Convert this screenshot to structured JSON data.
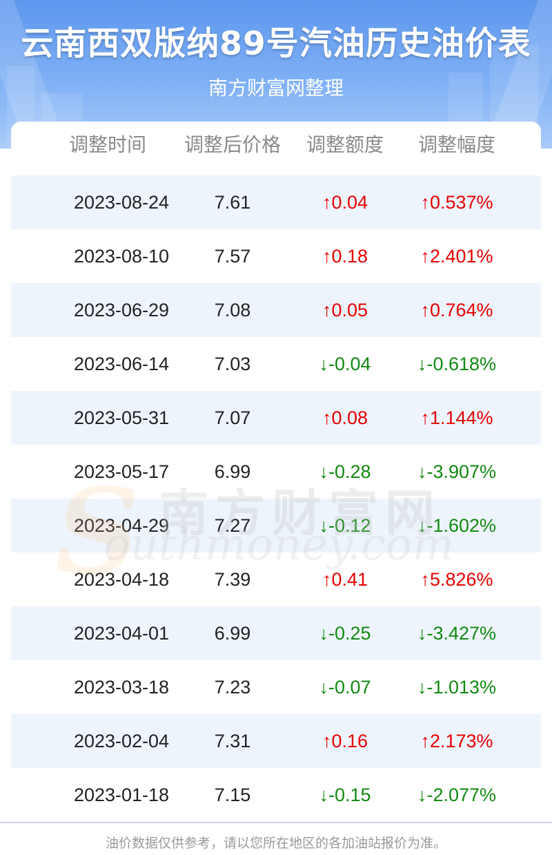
{
  "header": {
    "title": "云南西双版纳89号汽油历史油价表",
    "subtitle": "南方财富网整理"
  },
  "table": {
    "columns": [
      "调整时间",
      "调整后价格",
      "调整额度",
      "调整幅度"
    ],
    "rows": [
      {
        "date": "2023-08-24",
        "price": "7.61",
        "change": "↑0.04",
        "pct": "↑0.537%",
        "dir": "up"
      },
      {
        "date": "2023-08-10",
        "price": "7.57",
        "change": "↑0.18",
        "pct": "↑2.401%",
        "dir": "up"
      },
      {
        "date": "2023-06-29",
        "price": "7.08",
        "change": "↑0.05",
        "pct": "↑0.764%",
        "dir": "up"
      },
      {
        "date": "2023-06-14",
        "price": "7.03",
        "change": "↓-0.04",
        "pct": "↓-0.618%",
        "dir": "down"
      },
      {
        "date": "2023-05-31",
        "price": "7.07",
        "change": "↑0.08",
        "pct": "↑1.144%",
        "dir": "up"
      },
      {
        "date": "2023-05-17",
        "price": "6.99",
        "change": "↓-0.28",
        "pct": "↓-3.907%",
        "dir": "down"
      },
      {
        "date": "2023-04-29",
        "price": "7.27",
        "change": "↓-0.12",
        "pct": "↓-1.602%",
        "dir": "down"
      },
      {
        "date": "2023-04-18",
        "price": "7.39",
        "change": "↑0.41",
        "pct": "↑5.826%",
        "dir": "up"
      },
      {
        "date": "2023-04-01",
        "price": "6.99",
        "change": "↓-0.25",
        "pct": "↓-3.427%",
        "dir": "down"
      },
      {
        "date": "2023-03-18",
        "price": "7.23",
        "change": "↓-0.07",
        "pct": "↓-1.013%",
        "dir": "down"
      },
      {
        "date": "2023-02-04",
        "price": "7.31",
        "change": "↑0.16",
        "pct": "↑2.173%",
        "dir": "up"
      },
      {
        "date": "2023-01-18",
        "price": "7.15",
        "change": "↓-0.15",
        "pct": "↓-2.077%",
        "dir": "down"
      }
    ]
  },
  "watermark": {
    "cn": "南方财富网",
    "en": "outhmoney.com",
    "logo_letter": "S"
  },
  "footer": {
    "note": "油价数据仅供参考，请以您所在地区的各加油站报价为准。"
  },
  "colors": {
    "up": "#e60000",
    "down": "#118a11",
    "header_blue": "#5d97ee",
    "row_alt": "#eef4fc"
  }
}
